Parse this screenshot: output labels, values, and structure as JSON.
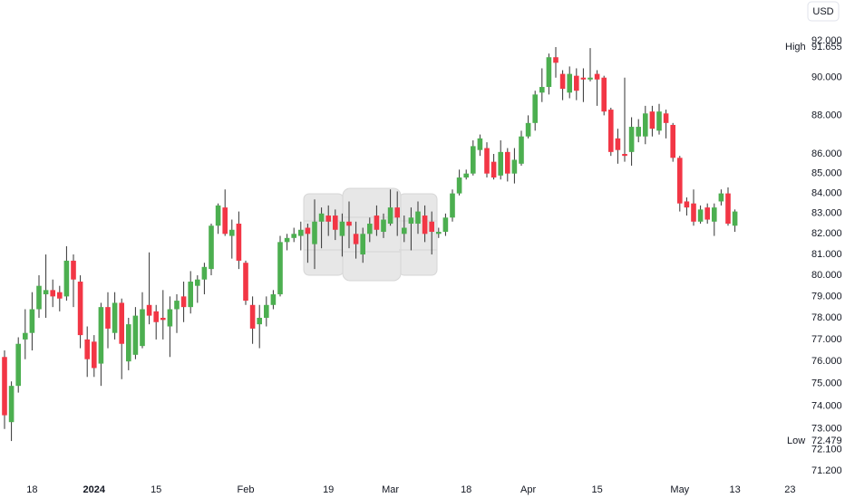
{
  "chart_data": {
    "type": "candlestick",
    "currency": "USD",
    "log_scale": true,
    "up_color": "#4caf50",
    "down_color": "#f23645",
    "wick_color": "#333333",
    "high_label": "High",
    "high_value": 91.655,
    "low_label": "Low",
    "low_value": 72.479,
    "ylim": [
      70.82,
      94.26
    ],
    "yticks": [
      {
        "value": 71.2,
        "label": "71.200"
      },
      {
        "value": 72.1,
        "label": "72.100"
      },
      {
        "value": 73,
        "label": "73.000"
      },
      {
        "value": 74,
        "label": "74.000"
      },
      {
        "value": 75,
        "label": "75.000"
      },
      {
        "value": 76,
        "label": "76.000"
      },
      {
        "value": 77,
        "label": "77.000"
      },
      {
        "value": 78,
        "label": "78.000"
      },
      {
        "value": 79,
        "label": "79.000"
      },
      {
        "value": 80,
        "label": "80.000"
      },
      {
        "value": 81,
        "label": "81.000"
      },
      {
        "value": 82,
        "label": "82.000"
      },
      {
        "value": 83,
        "label": "83.000"
      },
      {
        "value": 84,
        "label": "84.000"
      },
      {
        "value": 85,
        "label": "85.000"
      },
      {
        "value": 86,
        "label": "86.000"
      },
      {
        "value": 88,
        "label": "88.000"
      },
      {
        "value": 90,
        "label": "90.000"
      },
      {
        "value": 92,
        "label": "92.000"
      }
    ],
    "categories": [
      null,
      null,
      null,
      null,
      "18",
      null,
      null,
      null,
      null,
      null,
      null,
      null,
      null,
      "2024",
      null,
      null,
      null,
      null,
      null,
      null,
      null,
      null,
      "15",
      null,
      null,
      null,
      null,
      null,
      null,
      null,
      null,
      null,
      null,
      null,
      null,
      "Feb",
      null,
      null,
      null,
      null,
      null,
      null,
      null,
      null,
      null,
      null,
      null,
      "19",
      null,
      null,
      null,
      null,
      null,
      null,
      null,
      null,
      "Mar",
      null,
      null,
      null,
      null,
      null,
      null,
      null,
      null,
      null,
      null,
      "18",
      null,
      null,
      null,
      null,
      null,
      null,
      null,
      null,
      "Apr",
      null,
      null,
      null,
      null,
      null,
      null,
      null,
      null,
      null,
      "15",
      null,
      null,
      null,
      null,
      null,
      null,
      null,
      null,
      null,
      null,
      null,
      "May",
      null,
      null,
      null,
      null,
      null,
      null,
      null,
      "13",
      null,
      null,
      null,
      null,
      null,
      null,
      null,
      "23"
    ],
    "open": [
      76.2,
      73.3,
      74.9,
      77.0,
      77.3,
      78.4,
      79.1,
      79.3,
      79.2,
      79.0,
      80.7,
      79.7,
      77.0,
      76.9,
      75.9,
      78.5,
      77.3,
      78.7,
      76.0,
      76.3,
      76.7,
      78.6,
      78.3,
      78.0,
      77.6,
      78.4,
      79.0,
      78.5,
      79.5,
      79.8,
      80.3,
      82.4,
      83.3,
      81.9,
      82.5,
      80.6,
      78.6,
      77.7,
      78.0,
      78.6,
      79.1,
      81.6,
      81.8,
      81.9,
      82.3,
      81.5,
      82.6,
      82.9,
      82.9,
      81.9,
      82.6,
      82.0,
      81.0,
      82.0,
      82.9,
      82.1,
      82.5,
      83.3,
      82.0,
      82.5,
      82.5,
      82.9,
      82.6,
      82.0,
      82.1,
      82.8,
      84.0,
      84.8,
      85.0,
      86.2,
      86.3,
      85.6,
      84.9,
      86.1,
      85.0,
      85.5,
      86.9,
      87.6,
      89.2,
      89.5,
      91.1,
      90.2,
      89.2,
      90.1,
      90.0,
      89.9,
      90.2,
      90.0,
      88.3,
      86.8,
      86.0,
      86.1,
      86.9,
      86.9,
      88.2,
      87.2,
      88.1,
      87.5,
      85.8,
      83.6,
      83.5,
      82.6,
      83.3,
      82.6,
      83.6,
      84.0,
      82.4,
      null,
      null,
      null,
      null,
      null,
      null,
      null,
      null
    ],
    "high": [
      76.5,
      75.1,
      77.1,
      78.4,
      79.2,
      80.0,
      81.0,
      79.8,
      79.5,
      81.4,
      81.0,
      80.0,
      77.6,
      77.2,
      78.7,
      79.2,
      79.2,
      78.9,
      78.0,
      78.5,
      79.2,
      81.1,
      78.6,
      79.3,
      79.0,
      79.1,
      79.7,
      80.2,
      80.0,
      80.6,
      82.5,
      83.5,
      84.2,
      82.7,
      83.1,
      80.7,
      79.0,
      78.6,
      79.0,
      79.3,
      81.9,
      82.0,
      82.3,
      82.6,
      82.5,
      83.7,
      83.3,
      83.4,
      83.2,
      83.0,
      83.6,
      82.6,
      82.3,
      82.8,
      83.4,
      83.0,
      84.2,
      84.1,
      82.9,
      83.3,
      83.6,
      83.4,
      83.1,
      82.3,
      83.0,
      84.2,
      85.2,
      85.2,
      86.7,
      87.0,
      86.6,
      86.0,
      86.7,
      86.3,
      86.3,
      87.2,
      88.0,
      89.3,
      90.5,
      91.3,
      91.655,
      90.4,
      90.6,
      90.5,
      90.5,
      91.6,
      90.4,
      90.1,
      88.4,
      87.3,
      90.0,
      87.9,
      87.8,
      88.5,
      88.5,
      88.6,
      88.3,
      87.6,
      85.9,
      83.8,
      84.2,
      83.4,
      83.5,
      83.5,
      84.2,
      84.3,
      83.2,
      null,
      null,
      null,
      null,
      null,
      null,
      null,
      null
    ],
    "low": [
      73.0,
      72.479,
      74.6,
      76.1,
      76.5,
      78.0,
      78.0,
      78.5,
      78.3,
      78.8,
      78.5,
      76.6,
      75.3,
      75.3,
      74.9,
      76.6,
      77.0,
      75.2,
      75.6,
      76.1,
      76.6,
      77.7,
      77.0,
      77.0,
      76.2,
      77.3,
      77.8,
      78.2,
      78.7,
      79.1,
      80.0,
      82.0,
      81.9,
      80.8,
      80.3,
      78.6,
      76.8,
      76.6,
      77.6,
      78.4,
      79.0,
      81.2,
      81.6,
      81.2,
      80.6,
      80.3,
      81.3,
      81.9,
      81.7,
      80.9,
      81.3,
      80.8,
      80.6,
      81.6,
      81.9,
      81.8,
      82.4,
      81.9,
      81.6,
      81.2,
      82.0,
      81.6,
      81.0,
      81.8,
      81.9,
      82.6,
      83.9,
      84.7,
      84.9,
      85.9,
      84.8,
      84.7,
      84.7,
      84.6,
      84.5,
      85.4,
      86.8,
      87.2,
      88.7,
      89.1,
      90.0,
      88.8,
      88.9,
      88.8,
      88.7,
      89.8,
      88.5,
      88.0,
      85.9,
      85.5,
      85.6,
      85.4,
      86.6,
      86.5,
      86.9,
      87.0,
      86.8,
      85.6,
      83.1,
      82.9,
      82.4,
      82.5,
      82.5,
      81.9,
      83.4,
      82.4,
      82.1,
      null,
      null,
      null,
      null,
      null,
      null,
      null,
      null
    ],
    "close": [
      73.6,
      74.9,
      76.8,
      77.3,
      78.4,
      79.5,
      79.3,
      79.0,
      78.9,
      80.7,
      79.8,
      77.2,
      76.1,
      75.7,
      78.5,
      77.5,
      78.7,
      76.8,
      77.7,
      78.1,
      78.4,
      78.1,
      77.8,
      77.9,
      78.4,
      78.8,
      78.5,
      79.7,
      79.8,
      80.4,
      82.4,
      83.4,
      82.0,
      82.2,
      80.7,
      78.8,
      77.5,
      78.0,
      78.6,
      79.1,
      81.6,
      81.8,
      82.0,
      82.2,
      82.0,
      82.6,
      83.0,
      82.6,
      82.2,
      82.6,
      82.4,
      81.5,
      82.0,
      82.5,
      82.2,
      82.7,
      83.3,
      82.8,
      82.3,
      82.8,
      83.1,
      82.0,
      82.1,
      82.1,
      82.8,
      84.0,
      84.8,
      85.0,
      86.4,
      86.8,
      85.0,
      84.8,
      86.1,
      85.0,
      85.7,
      86.9,
      87.6,
      89.1,
      89.5,
      91.1,
      90.8,
      89.4,
      90.2,
      89.3,
      89.9,
      90.0,
      89.9,
      88.2,
      86.1,
      86.2,
      85.9,
      87.4,
      87.4,
      88.1,
      87.3,
      88.2,
      87.6,
      85.8,
      83.5,
      83.3,
      82.6,
      83.2,
      82.7,
      83.3,
      84.0,
      82.5,
      83.1,
      null,
      null,
      null,
      null,
      null,
      null,
      null,
      null
    ]
  }
}
